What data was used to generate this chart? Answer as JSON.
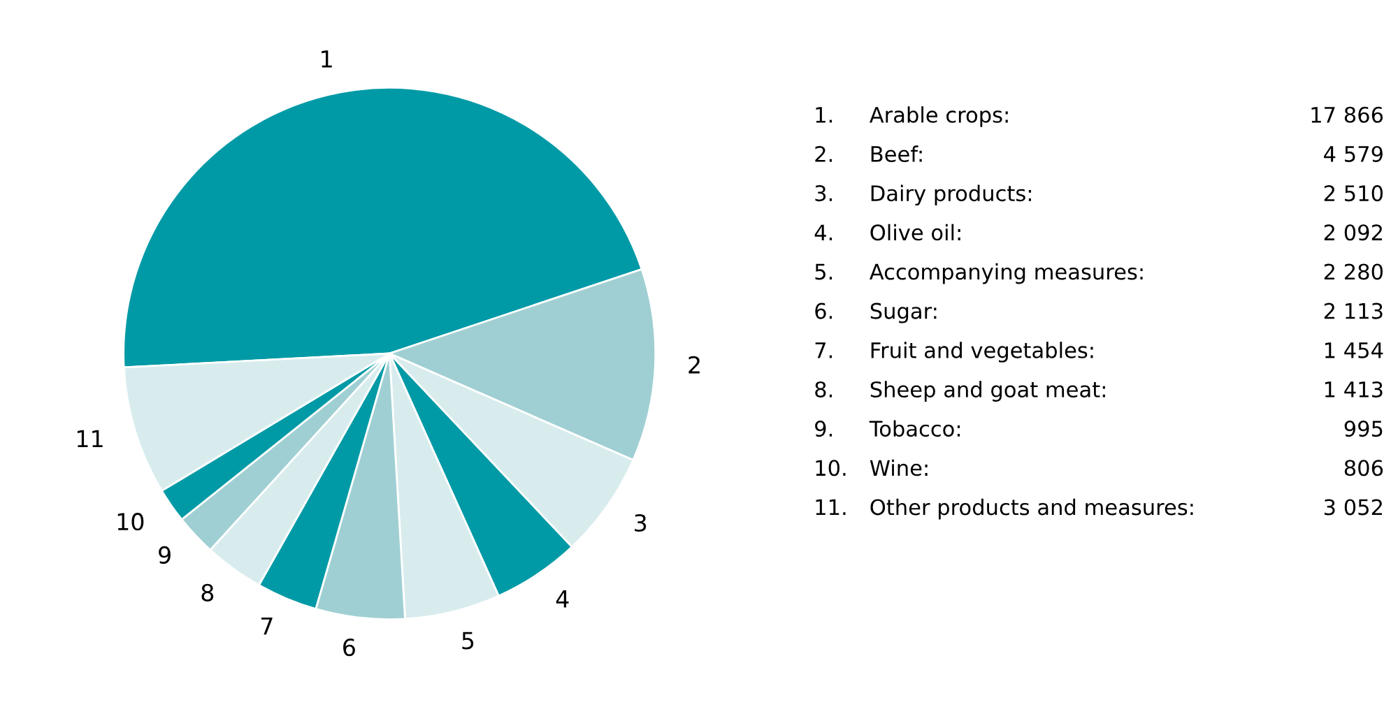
{
  "chart_data": {
    "type": "pie",
    "categories": [
      "1",
      "2",
      "3",
      "4",
      "5",
      "6",
      "7",
      "8",
      "9",
      "10",
      "11"
    ],
    "values": [
      45.7,
      11.7,
      6.4,
      5.3,
      5.8,
      5.4,
      3.7,
      3.6,
      2.5,
      2.1,
      7.8
    ],
    "colors": [
      "#009aa6",
      "#9fcfd3",
      "#d8ecee",
      "#009aa6",
      "#d8ecee",
      "#9fcfd3",
      "#009aa6",
      "#d8ecee",
      "#9fcfd3",
      "#009aa6",
      "#d8ecee"
    ],
    "annotations": [
      "1.",
      "Arable crops:",
      "17 866",
      "2.",
      "Beef:",
      "4 579",
      "3.",
      "Dairy products:",
      "2 510",
      "4.",
      "Olive oil:",
      "2 092",
      "5.",
      "Accompanying measures:",
      "2 280",
      "6.",
      "Sugar:",
      "2 113",
      "7.",
      "Fruit and vegetables:",
      "1 454",
      "8.",
      "Sheep and goat meat:",
      "1 413",
      "9.",
      "Tobacco:",
      "995",
      "10.",
      "Wine:",
      "806",
      "11.",
      "Other products and measures:",
      "3 052"
    ]
  }
}
